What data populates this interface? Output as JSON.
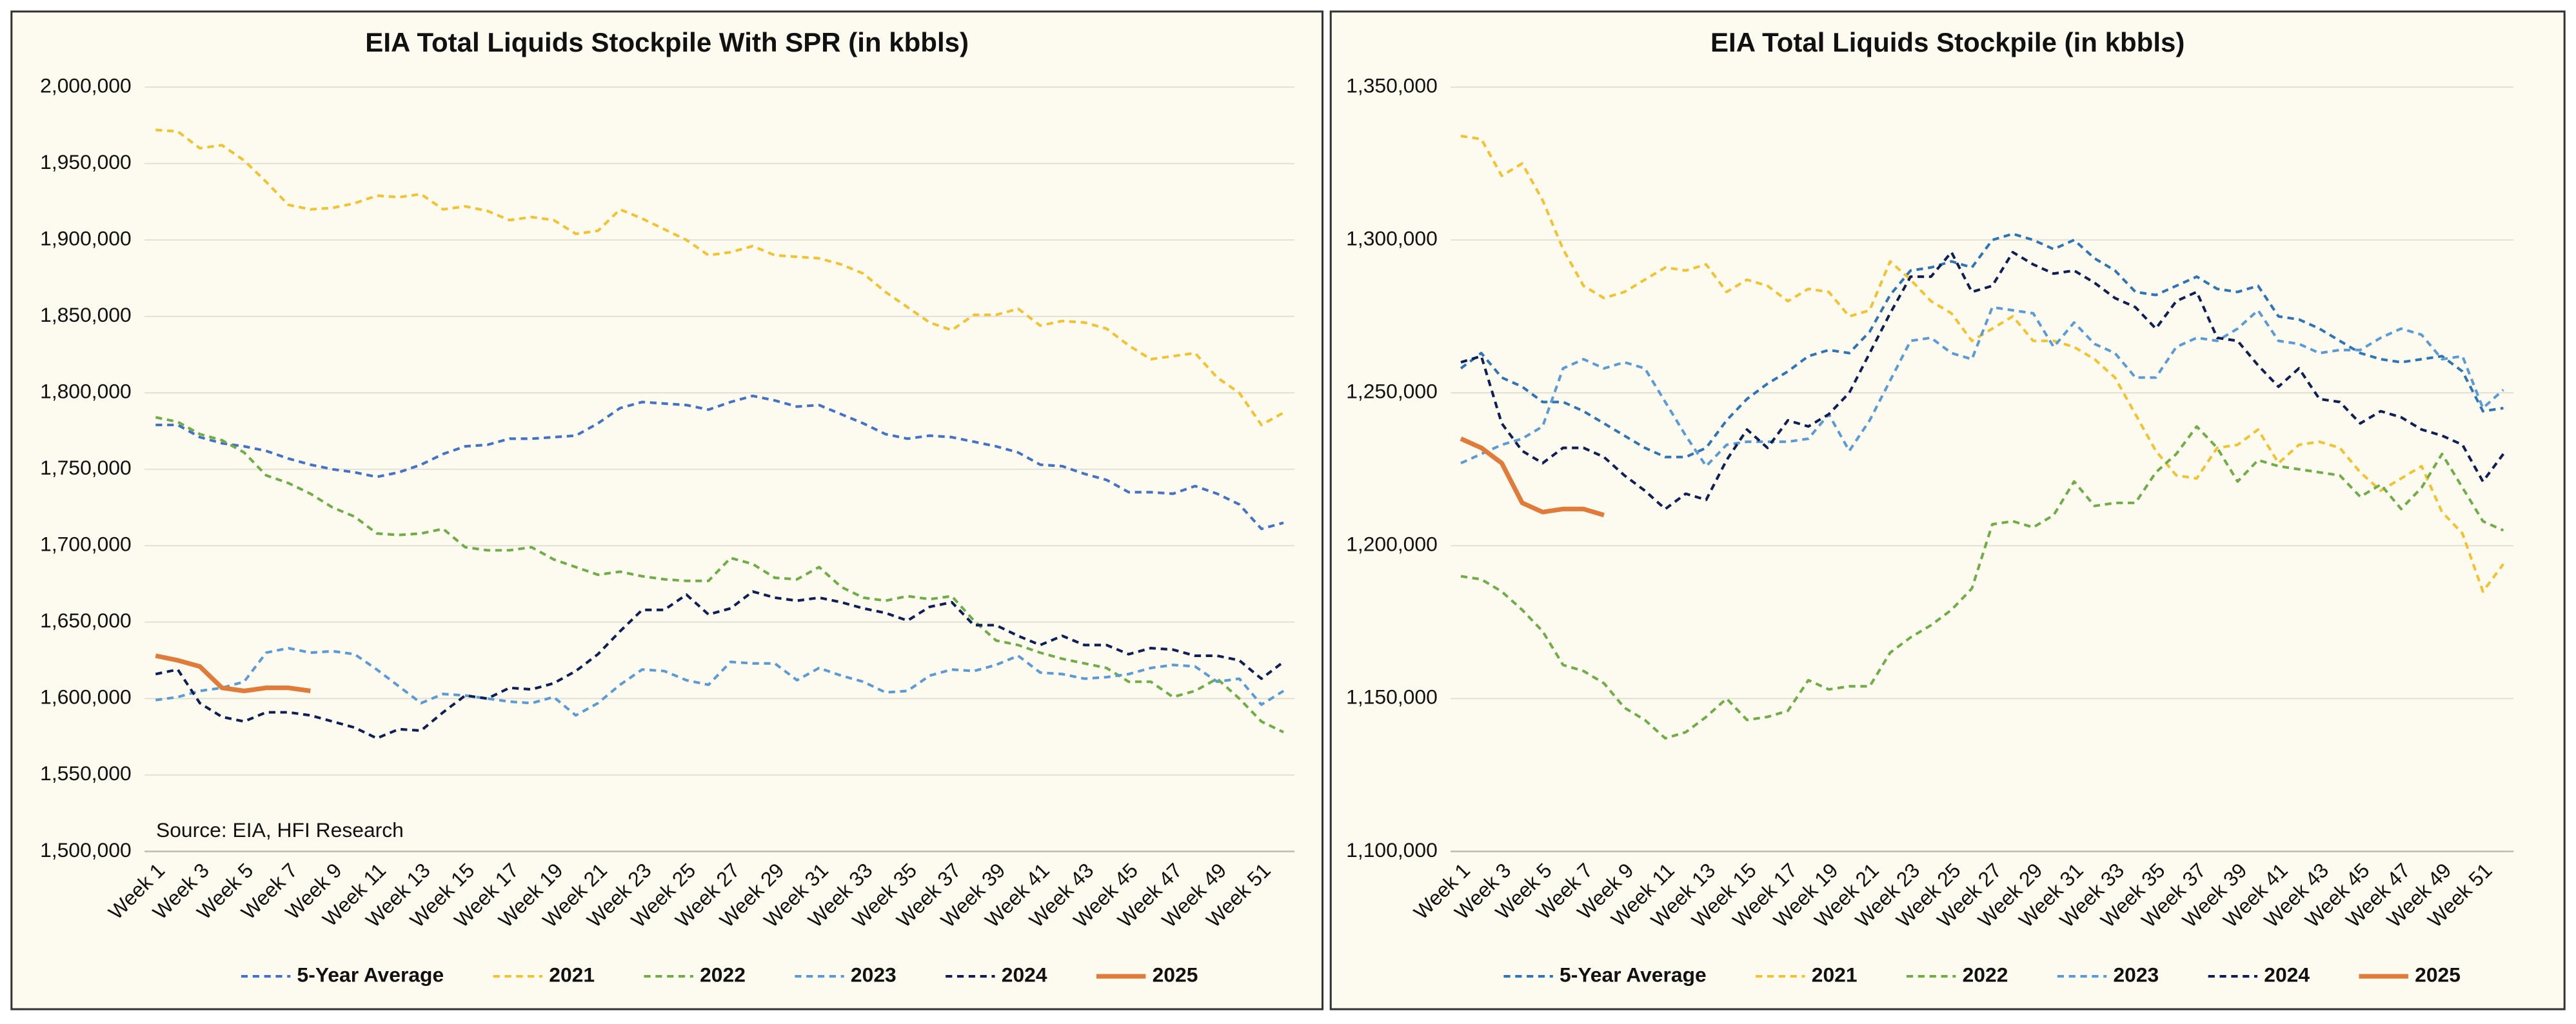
{
  "chart_data": [
    {
      "type": "line",
      "title": "EIA Total Liquids Stockpile With SPR (in kbbls)",
      "annotation": "Source: EIA, HFI Research",
      "grid": true,
      "legend": "bottom",
      "categories": [
        "Week 1",
        null,
        "Week 3",
        null,
        "Week 5",
        null,
        "Week 7",
        null,
        "Week 9",
        null,
        "Week 11",
        null,
        "Week 13",
        null,
        "Week 15",
        null,
        "Week 17",
        null,
        "Week 19",
        null,
        "Week 21",
        null,
        "Week 23",
        null,
        "Week 25",
        null,
        "Week 27",
        null,
        "Week 29",
        null,
        "Week 31",
        null,
        "Week 33",
        null,
        "Week 35",
        null,
        "Week 37",
        null,
        "Week 39",
        null,
        "Week 41",
        null,
        "Week 43",
        null,
        "Week 45",
        null,
        "Week 47",
        null,
        "Week 49",
        null,
        "Week 51",
        null
      ],
      "ylim": [
        1500000,
        2000000
      ],
      "yticks": [
        {
          "value": 1500000,
          "label": "1,500,000"
        },
        {
          "value": 1550000,
          "label": "1,550,000"
        },
        {
          "value": 1600000,
          "label": "1,600,000"
        },
        {
          "value": 1650000,
          "label": "1,650,000"
        },
        {
          "value": 1700000,
          "label": "1,700,000"
        },
        {
          "value": 1750000,
          "label": "1,750,000"
        },
        {
          "value": 1800000,
          "label": "1,800,000"
        },
        {
          "value": 1850000,
          "label": "1,850,000"
        },
        {
          "value": 1900000,
          "label": "1,900,000"
        },
        {
          "value": 1950000,
          "label": "1,950,000"
        },
        {
          "value": 2000000,
          "label": "2,000,000"
        }
      ],
      "series": [
        {
          "name": "5-Year Average",
          "color": "#4472c4",
          "dashed": true,
          "values": [
            1779000,
            1779000,
            1771000,
            1767000,
            1765000,
            1762000,
            1757000,
            1753000,
            1750000,
            1748000,
            1745000,
            1748000,
            1753000,
            1760000,
            1765000,
            1766000,
            1770000,
            1770000,
            1771000,
            1772000,
            1780000,
            1790000,
            1794000,
            1793000,
            1792000,
            1789000,
            1794000,
            1798000,
            1795000,
            1791000,
            1792000,
            1786000,
            1780000,
            1773000,
            1770000,
            1772000,
            1771000,
            1768000,
            1765000,
            1761000,
            1753000,
            1752000,
            1747000,
            1743000,
            1735000,
            1735000,
            1734000,
            1739000,
            1734000,
            1727000,
            1711000,
            1715000
          ]
        },
        {
          "name": "2021",
          "color": "#f2c230",
          "dashed": true,
          "values": [
            1972000,
            1971000,
            1960000,
            1962000,
            1952000,
            1938000,
            1923000,
            1920000,
            1921000,
            1924000,
            1929000,
            1928000,
            1930000,
            1920000,
            1922000,
            1919000,
            1913000,
            1915000,
            1913000,
            1904000,
            1906000,
            1920000,
            1914000,
            1907000,
            1900000,
            1890000,
            1892000,
            1896000,
            1890000,
            1889000,
            1888000,
            1884000,
            1878000,
            1866000,
            1856000,
            1846000,
            1841000,
            1851000,
            1851000,
            1855000,
            1844000,
            1847000,
            1846000,
            1842000,
            1831000,
            1822000,
            1824000,
            1826000,
            1810000,
            1800000,
            1779000,
            1787000
          ]
        },
        {
          "name": "2022",
          "color": "#70ad47",
          "dashed": true,
          "values": [
            1784000,
            1781000,
            1773000,
            1769000,
            1761000,
            1746000,
            1741000,
            1734000,
            1725000,
            1719000,
            1708000,
            1707000,
            1708000,
            1711000,
            1699000,
            1697000,
            1697000,
            1699000,
            1691000,
            1686000,
            1681000,
            1683000,
            1680000,
            1678000,
            1677000,
            1677000,
            1692000,
            1688000,
            1679000,
            1678000,
            1686000,
            1673000,
            1666000,
            1664000,
            1667000,
            1665000,
            1667000,
            1651000,
            1638000,
            1635000,
            1630000,
            1626000,
            1623000,
            1620000,
            1611000,
            1611000,
            1601000,
            1605000,
            1613000,
            1600000,
            1585000,
            1578000
          ]
        },
        {
          "name": "2023",
          "color": "#5b9bd5",
          "dashed": true,
          "values": [
            1599000,
            1601000,
            1605000,
            1607000,
            1611000,
            1630000,
            1633000,
            1630000,
            1631000,
            1629000,
            1619000,
            1608000,
            1597000,
            1603000,
            1602000,
            1600000,
            1598000,
            1597000,
            1601000,
            1589000,
            1597000,
            1609000,
            1619000,
            1618000,
            1612000,
            1609000,
            1624000,
            1623000,
            1623000,
            1612000,
            1620000,
            1615000,
            1611000,
            1604000,
            1605000,
            1615000,
            1619000,
            1618000,
            1622000,
            1628000,
            1617000,
            1616000,
            1613000,
            1614000,
            1616000,
            1620000,
            1622000,
            1621000,
            1611000,
            1613000,
            1596000,
            1605000
          ]
        },
        {
          "name": "2024",
          "color": "#0e1f55",
          "dashed": true,
          "values": [
            1616000,
            1619000,
            1597000,
            1588000,
            1585000,
            1591000,
            1591000,
            1589000,
            1585000,
            1581000,
            1574000,
            1580000,
            1579000,
            1591000,
            1602000,
            1600000,
            1607000,
            1606000,
            1610000,
            1618000,
            1629000,
            1644000,
            1658000,
            1658000,
            1668000,
            1655000,
            1659000,
            1670000,
            1666000,
            1664000,
            1666000,
            1663000,
            1659000,
            1656000,
            1651000,
            1660000,
            1663000,
            1648000,
            1648000,
            1641000,
            1635000,
            1641000,
            1635000,
            1635000,
            1629000,
            1633000,
            1632000,
            1628000,
            1628000,
            1625000,
            1613000,
            1624000
          ]
        },
        {
          "name": "2025",
          "color": "#e07b39",
          "dashed": false,
          "values": [
            1628000,
            1625000,
            1621000,
            1607000,
            1605000,
            1607000,
            1607000,
            1605000,
            null,
            null,
            null,
            null,
            null,
            null,
            null,
            null,
            null,
            null,
            null,
            null,
            null,
            null,
            null,
            null,
            null,
            null,
            null,
            null,
            null,
            null,
            null,
            null,
            null,
            null,
            null,
            null,
            null,
            null,
            null,
            null,
            null,
            null,
            null,
            null,
            null,
            null,
            null,
            null,
            null,
            null,
            null,
            null
          ]
        }
      ]
    },
    {
      "type": "line",
      "title": "EIA Total Liquids Stockpile (in kbbls)",
      "grid": true,
      "legend": "bottom",
      "categories": [
        "Week 1",
        null,
        "Week 3",
        null,
        "Week 5",
        null,
        "Week 7",
        null,
        "Week 9",
        null,
        "Week 11",
        null,
        "Week 13",
        null,
        "Week 15",
        null,
        "Week 17",
        null,
        "Week 19",
        null,
        "Week 21",
        null,
        "Week 23",
        null,
        "Week 25",
        null,
        "Week 27",
        null,
        "Week 29",
        null,
        "Week 31",
        null,
        "Week 33",
        null,
        "Week 35",
        null,
        "Week 37",
        null,
        "Week 39",
        null,
        "Week 41",
        null,
        "Week 43",
        null,
        "Week 45",
        null,
        "Week 47",
        null,
        "Week 49",
        null,
        "Week 51",
        null
      ],
      "ylim": [
        1100000,
        1350000
      ],
      "yticks": [
        {
          "value": 1100000,
          "label": "1,100,000"
        },
        {
          "value": 1150000,
          "label": "1,150,000"
        },
        {
          "value": 1200000,
          "label": "1,200,000"
        },
        {
          "value": 1250000,
          "label": "1,250,000"
        },
        {
          "value": 1300000,
          "label": "1,300,000"
        },
        {
          "value": 1350000,
          "label": "1,350,000"
        }
      ],
      "series": [
        {
          "name": "5-Year Average",
          "color": "#2e75b6",
          "dashed": true,
          "values": [
            1258000,
            1263000,
            1255000,
            1252000,
            1247000,
            1247000,
            1244000,
            1240000,
            1236000,
            1232000,
            1229000,
            1229000,
            1232000,
            1241000,
            1248000,
            1253000,
            1257000,
            1262000,
            1264000,
            1263000,
            1270000,
            1282000,
            1290000,
            1291000,
            1293000,
            1291000,
            1300000,
            1302000,
            1300000,
            1297000,
            1300000,
            1294000,
            1290000,
            1283000,
            1282000,
            1285000,
            1288000,
            1284000,
            1283000,
            1285000,
            1275000,
            1274000,
            1271000,
            1267000,
            1263000,
            1261000,
            1260000,
            1261000,
            1262000,
            1257000,
            1244000,
            1245000
          ]
        },
        {
          "name": "2021",
          "color": "#f2c230",
          "dashed": true,
          "values": [
            1334000,
            1333000,
            1321000,
            1325000,
            1313000,
            1297000,
            1285000,
            1281000,
            1283000,
            1287000,
            1291000,
            1290000,
            1292000,
            1283000,
            1287000,
            1285000,
            1280000,
            1284000,
            1283000,
            1275000,
            1277000,
            1293000,
            1287000,
            1280000,
            1276000,
            1267000,
            1271000,
            1275000,
            1267000,
            1267000,
            1265000,
            1261000,
            1255000,
            1243000,
            1231000,
            1223000,
            1222000,
            1232000,
            1233000,
            1238000,
            1227000,
            1233000,
            1234000,
            1232000,
            1224000,
            1218000,
            1222000,
            1226000,
            1211000,
            1204000,
            1185000,
            1194000
          ]
        },
        {
          "name": "2022",
          "color": "#70ad47",
          "dashed": true,
          "values": [
            1190000,
            1189000,
            1185000,
            1179000,
            1172000,
            1161000,
            1159000,
            1155000,
            1147000,
            1143000,
            1137000,
            1139000,
            1144000,
            1150000,
            1143000,
            1144000,
            1146000,
            1156000,
            1153000,
            1154000,
            1154000,
            1165000,
            1170000,
            1174000,
            1179000,
            1186000,
            1207000,
            1208000,
            1206000,
            1210000,
            1221000,
            1213000,
            1214000,
            1214000,
            1224000,
            1230000,
            1239000,
            1232000,
            1221000,
            1228000,
            1226000,
            1225000,
            1224000,
            1223000,
            1216000,
            1220000,
            1212000,
            1219000,
            1230000,
            1219000,
            1208000,
            1205000
          ]
        },
        {
          "name": "2023",
          "color": "#5b9bd5",
          "dashed": true,
          "values": [
            1227000,
            1230000,
            1233000,
            1235000,
            1239000,
            1258000,
            1261000,
            1258000,
            1260000,
            1258000,
            1247000,
            1236000,
            1226000,
            1233000,
            1234000,
            1234000,
            1234000,
            1235000,
            1243000,
            1231000,
            1241000,
            1254000,
            1267000,
            1268000,
            1263000,
            1261000,
            1278000,
            1277000,
            1276000,
            1265000,
            1273000,
            1266000,
            1263000,
            1255000,
            1255000,
            1265000,
            1268000,
            1267000,
            1271000,
            1277000,
            1267000,
            1266000,
            1263000,
            1264000,
            1264000,
            1268000,
            1271000,
            1269000,
            1261000,
            1262000,
            1245000,
            1251000
          ]
        },
        {
          "name": "2024",
          "color": "#0e1f55",
          "dashed": true,
          "values": [
            1260000,
            1262000,
            1240000,
            1231000,
            1227000,
            1232000,
            1232000,
            1229000,
            1223000,
            1218000,
            1212000,
            1217000,
            1215000,
            1228000,
            1238000,
            1232000,
            1241000,
            1239000,
            1243000,
            1250000,
            1263000,
            1276000,
            1288000,
            1288000,
            1296000,
            1283000,
            1285000,
            1296000,
            1292000,
            1289000,
            1290000,
            1286000,
            1281000,
            1278000,
            1271000,
            1280000,
            1283000,
            1268000,
            1267000,
            1259000,
            1252000,
            1258000,
            1248000,
            1247000,
            1240000,
            1244000,
            1242000,
            1238000,
            1236000,
            1233000,
            1221000,
            1230000
          ]
        },
        {
          "name": "2025",
          "color": "#e07b39",
          "dashed": false,
          "values": [
            1235000,
            1232000,
            1227000,
            1214000,
            1211000,
            1212000,
            1212000,
            1210000,
            null,
            null,
            null,
            null,
            null,
            null,
            null,
            null,
            null,
            null,
            null,
            null,
            null,
            null,
            null,
            null,
            null,
            null,
            null,
            null,
            null,
            null,
            null,
            null,
            null,
            null,
            null,
            null,
            null,
            null,
            null,
            null,
            null,
            null,
            null,
            null,
            null,
            null,
            null,
            null,
            null,
            null,
            null,
            null
          ]
        }
      ]
    }
  ]
}
